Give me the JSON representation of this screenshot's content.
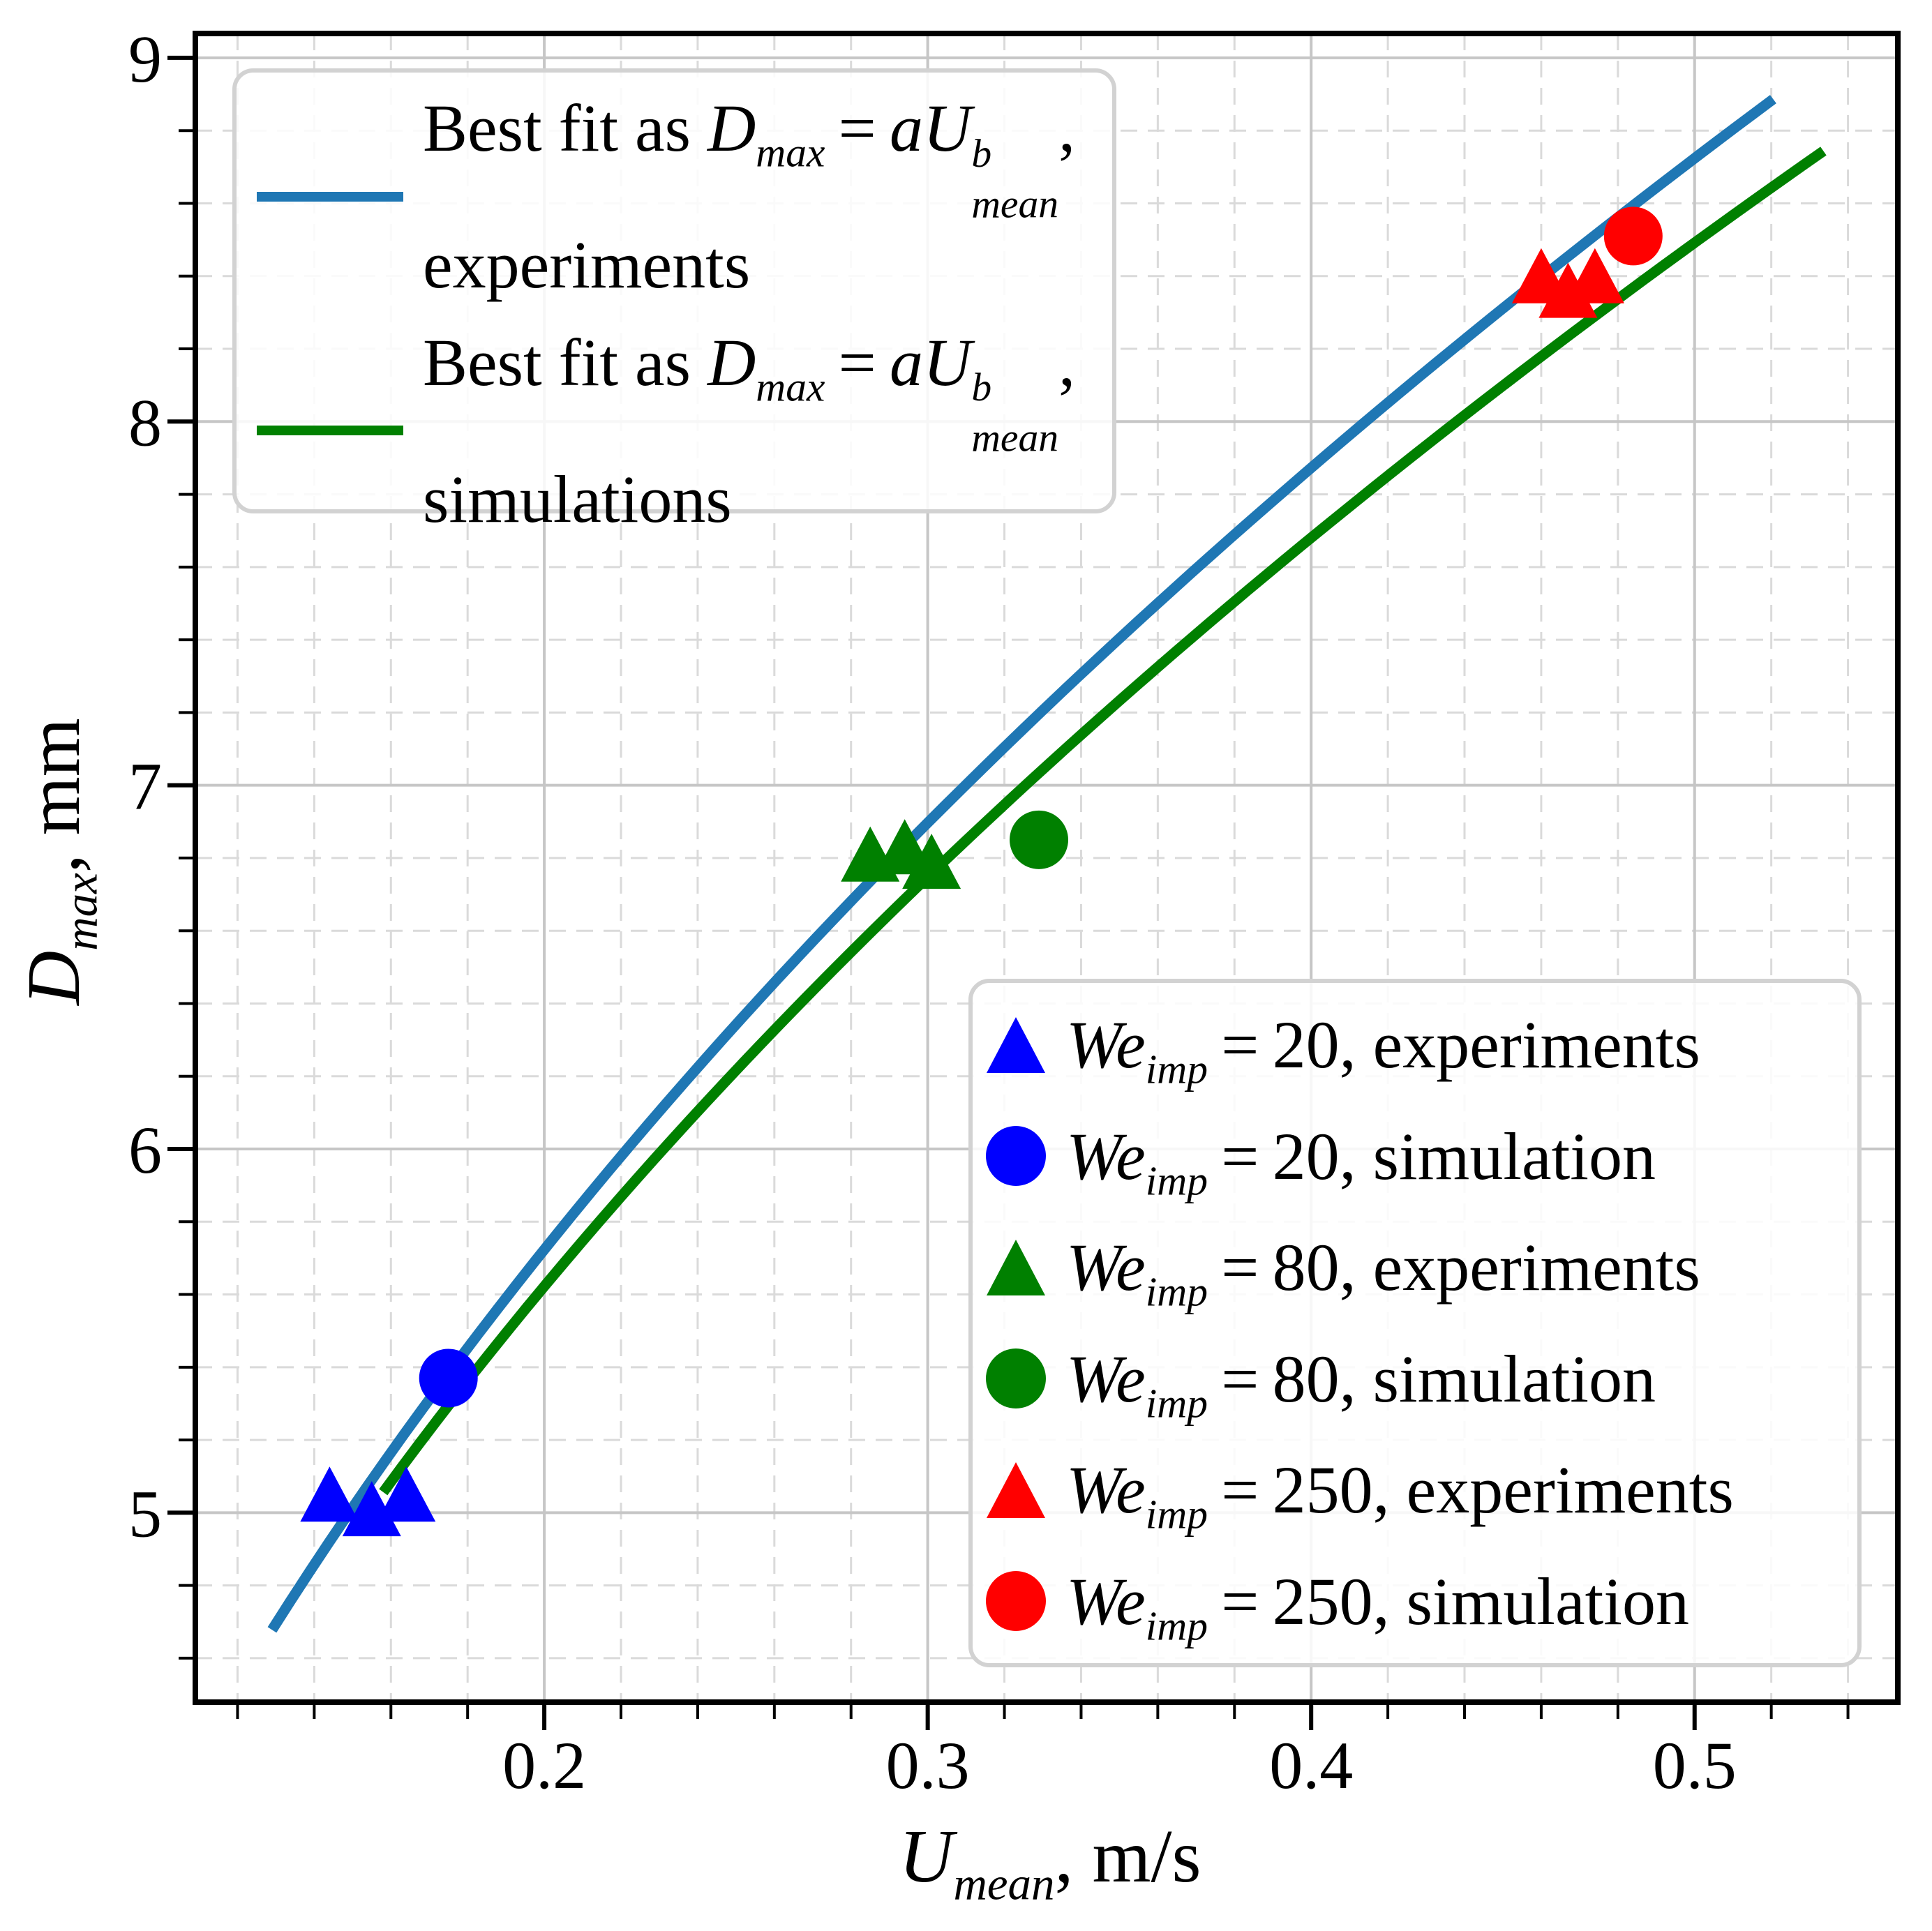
{
  "page": {
    "background": "#ffffff"
  },
  "chart_data": {
    "type": "scatter",
    "title": "",
    "xlabel": {
      "main": "U",
      "sub": "mean",
      "unit": ", m/s"
    },
    "ylabel": {
      "main": "D",
      "sub": "max",
      "unit": ", mm"
    },
    "x_axis": {
      "min": 0.109,
      "max": 0.553,
      "major_ticks": [
        0.2,
        0.3,
        0.4,
        0.5
      ],
      "tick_labels": [
        "0.2",
        "0.3",
        "0.4",
        "0.5"
      ],
      "minor_start": 0.12,
      "minor_step": 0.02,
      "minor_end": 0.54,
      "grid": true
    },
    "y_axis": {
      "min": 4.479,
      "max": 9.067,
      "major_ticks": [
        5,
        6,
        7,
        8,
        9
      ],
      "tick_labels": [
        "5",
        "6",
        "7",
        "8",
        "9"
      ],
      "minor_start": 4.6,
      "minor_step": 0.2,
      "minor_end": 8.8,
      "grid": true
    },
    "series": [
      {
        "name": "We_imp = 20, experiments",
        "marker": "triangle",
        "color": "#0000ff",
        "points": [
          [
            0.144,
            5.05
          ],
          [
            0.155,
            5.01
          ],
          [
            0.164,
            5.05
          ]
        ]
      },
      {
        "name": "We_imp = 20, simulation",
        "marker": "circle",
        "color": "#0000ff",
        "points": [
          [
            0.175,
            5.37
          ]
        ]
      },
      {
        "name": "We_imp = 80, experiments",
        "marker": "triangle",
        "color": "#008000",
        "points": [
          [
            0.285,
            6.81
          ],
          [
            0.294,
            6.83
          ],
          [
            0.301,
            6.79
          ]
        ]
      },
      {
        "name": "We_imp = 80, simulation",
        "marker": "circle",
        "color": "#008000",
        "points": [
          [
            0.329,
            6.85
          ]
        ]
      },
      {
        "name": "We_imp = 250, experiments",
        "marker": "triangle",
        "color": "#ff0000",
        "points": [
          [
            0.46,
            8.4
          ],
          [
            0.467,
            8.36
          ],
          [
            0.474,
            8.4
          ]
        ]
      },
      {
        "name": "We_imp = 250, simulation",
        "marker": "circle",
        "color": "#ff0000",
        "points": [
          [
            0.484,
            8.51
          ]
        ]
      }
    ],
    "fit_lines": [
      {
        "name": "experiments",
        "formula": "Dmax = a*Umean^b",
        "color": "#1f77b4",
        "a": 12.0,
        "b": 0.46,
        "x_start": 0.129,
        "x_end": 0.5205
      },
      {
        "name": "simulations",
        "formula": "Dmax = a*Umean^b",
        "color": "#008000",
        "a": 11.6,
        "b": 0.45,
        "x_start": 0.158,
        "x_end": 0.5336
      }
    ],
    "colors": {
      "grid_major": "#c6c6c6",
      "grid_minor": "#dadada",
      "spine": "#000000"
    },
    "legend_positions": {
      "fit_legend": "upper left",
      "marker_legend": "lower right"
    }
  },
  "legend_fit": {
    "formula": {
      "pre": "Best fit as ",
      "d_main": "D",
      "d_sub": "max",
      "eq": " = ",
      "au": "aU",
      "sup": "b",
      "sub": "mean",
      "post": ","
    },
    "entries": [
      {
        "color": "#1f77b4",
        "line2": "experiments"
      },
      {
        "color": "#008000",
        "line2": "simulations"
      }
    ]
  },
  "legend_markers": {
    "we": "We",
    "we_sub": "imp",
    "entries": [
      {
        "marker": "triangle",
        "color": "#0000ff",
        "rest": " = 20, experiments"
      },
      {
        "marker": "circle",
        "color": "#0000ff",
        "rest": " = 20, simulation"
      },
      {
        "marker": "triangle",
        "color": "#008000",
        "rest": " = 80, experiments"
      },
      {
        "marker": "circle",
        "color": "#008000",
        "rest": " = 80, simulation"
      },
      {
        "marker": "triangle",
        "color": "#ff0000",
        "rest": " = 250, experiments"
      },
      {
        "marker": "circle",
        "color": "#ff0000",
        "rest": " = 250, simulation"
      }
    ]
  }
}
